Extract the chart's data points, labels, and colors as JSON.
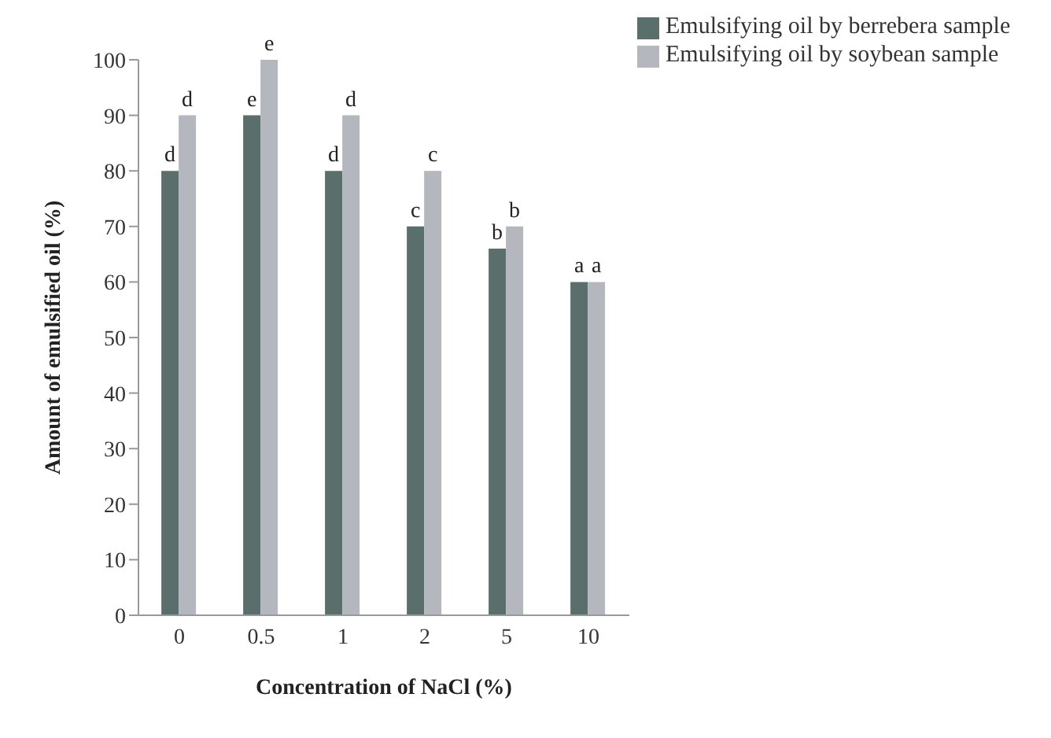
{
  "chart_data": {
    "type": "bar",
    "xlabel": "Concentration of NaCl (%)",
    "ylabel": "Amount of emulsified oil (%)",
    "categories": [
      "0",
      "0.5",
      "1",
      "2",
      "5",
      "10"
    ],
    "series": [
      {
        "name": "Emulsifying oil by berrebera sample",
        "color": "#5a6e6b",
        "values": [
          80,
          90,
          80,
          70,
          66,
          60
        ],
        "value_labels": [
          "d",
          "e",
          "d",
          "c",
          "b",
          "a"
        ]
      },
      {
        "name": "Emulsifying oil by soybean sample",
        "color": "#b4b7bd",
        "values": [
          90,
          100,
          90,
          80,
          70,
          60
        ],
        "value_labels": [
          "d",
          "e",
          "d",
          "c",
          "b",
          "a"
        ]
      }
    ],
    "ylim": [
      0,
      100
    ],
    "yticks": [
      0,
      10,
      20,
      30,
      40,
      50,
      60,
      70,
      80,
      90,
      100
    ],
    "grid": false,
    "legend": "top right"
  }
}
